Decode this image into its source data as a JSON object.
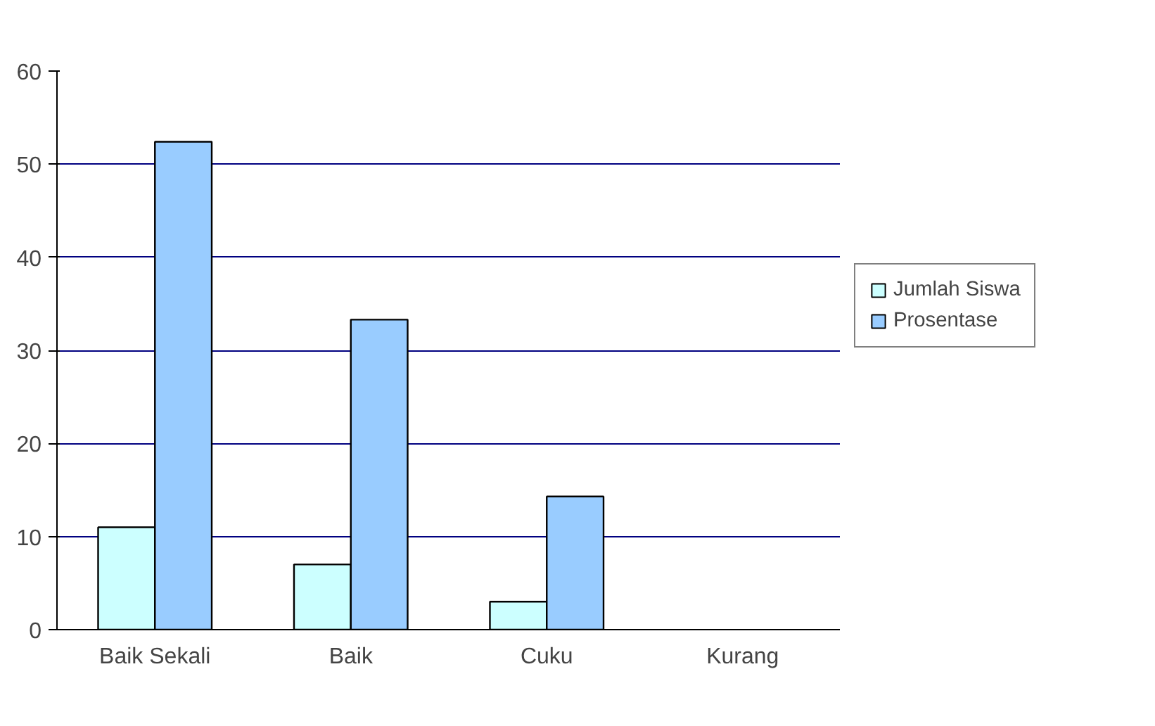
{
  "chart_data": {
    "type": "bar",
    "categories": [
      "Baik Sekali",
      "Baik",
      "Cuku",
      "Kurang"
    ],
    "series": [
      {
        "name": "Jumlah Siswa",
        "color": "#ccffff",
        "values": [
          11,
          7,
          3,
          0
        ]
      },
      {
        "name": "Prosentase",
        "color": "#99ccff",
        "values": [
          52.4,
          33.3,
          14.3,
          0
        ]
      }
    ],
    "ylim": [
      0,
      60
    ],
    "yticks": [
      0,
      10,
      20,
      30,
      40,
      50,
      60
    ],
    "grid": "y",
    "legend": "right"
  }
}
